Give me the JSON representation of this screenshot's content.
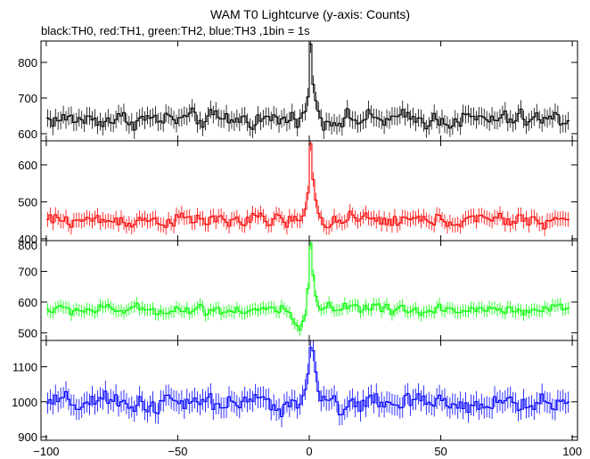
{
  "chart_data": {
    "type": "line",
    "title": "WAM T0 Lightcurve (y-axis: Counts)",
    "subtitle": "black:TH0, red:TH1, green:TH2, blue:TH3 ,1bin = 1s",
    "xlim": [
      -102,
      102
    ],
    "x_ticks": [
      -100,
      -50,
      0,
      50,
      100
    ],
    "x_tick_labels": [
      "−100",
      "−50",
      "0",
      "50",
      "100"
    ],
    "bin_size_s": 1,
    "grid": false,
    "series": [
      {
        "name": "TH0",
        "color": "#000000",
        "ylim": [
          580,
          860
        ],
        "y_ticks": [
          600,
          700,
          800
        ],
        "baseline": 640,
        "noise": 28,
        "error": 25,
        "peak_points": [
          [
            -4,
            640
          ],
          [
            -2,
            665
          ],
          [
            -1,
            700
          ],
          [
            0,
            850
          ],
          [
            1,
            740
          ],
          [
            2,
            690
          ],
          [
            3,
            665
          ],
          [
            4,
            645
          ]
        ]
      },
      {
        "name": "TH1",
        "color": "#ff0000",
        "ylim": [
          395,
          665
        ],
        "y_ticks": [
          400,
          500,
          600
        ],
        "baseline": 450,
        "noise": 22,
        "error": 20,
        "peak_points": [
          [
            -4,
            450
          ],
          [
            -2,
            480
          ],
          [
            -1,
            520
          ],
          [
            0,
            655
          ],
          [
            1,
            560
          ],
          [
            2,
            505
          ],
          [
            3,
            470
          ],
          [
            4,
            455
          ]
        ]
      },
      {
        "name": "TH2",
        "color": "#00ff00",
        "ylim": [
          475,
          800
        ],
        "y_ticks": [
          500,
          600,
          700,
          800
        ],
        "baseline": 575,
        "noise": 20,
        "error": 20,
        "peak_points": [
          [
            -8,
            565
          ],
          [
            -6,
            530
          ],
          [
            -4,
            510
          ],
          [
            -2,
            560
          ],
          [
            -1,
            640
          ],
          [
            0,
            790
          ],
          [
            1,
            690
          ],
          [
            2,
            620
          ],
          [
            3,
            590
          ],
          [
            4,
            578
          ]
        ]
      },
      {
        "name": "TH3",
        "color": "#0000ff",
        "ylim": [
          890,
          1175
        ],
        "y_ticks": [
          900,
          1000,
          1100
        ],
        "baseline": 995,
        "noise": 32,
        "error": 30,
        "peak_points": [
          [
            -4,
            995
          ],
          [
            -2,
            1040
          ],
          [
            -1,
            1080
          ],
          [
            0,
            1160
          ],
          [
            1,
            1140
          ],
          [
            2,
            1080
          ],
          [
            3,
            1030
          ],
          [
            4,
            1005
          ]
        ]
      }
    ]
  }
}
